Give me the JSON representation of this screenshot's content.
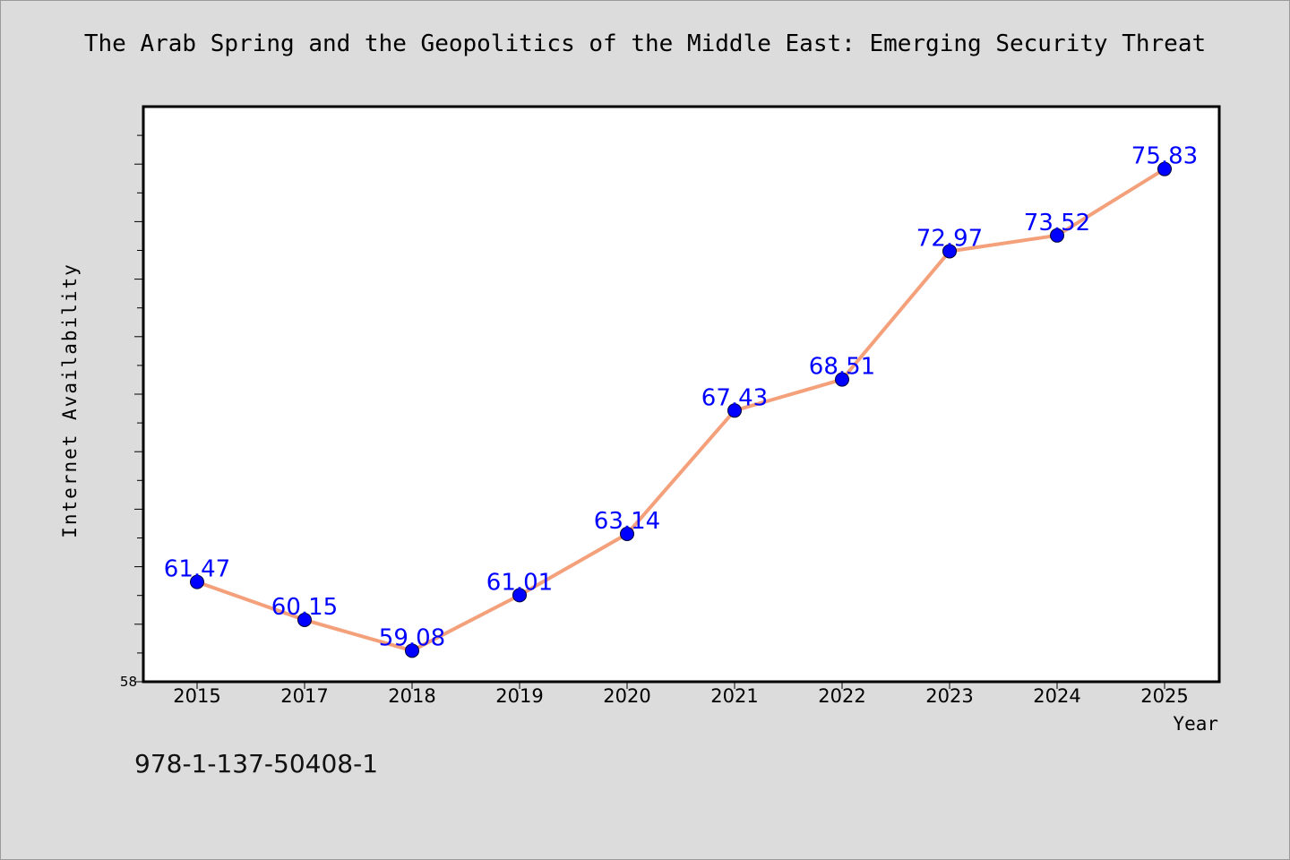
{
  "title": "The Arab Spring and the Geopolitics of the Middle East: Emerging Security Threat",
  "footer_code": "978-1-137-50408-1",
  "colors": {
    "background": "#dcdcdc",
    "plot_bg": "#ffffff",
    "line": "#f4a07a",
    "marker": "#0000ff",
    "label": "#0000ff"
  },
  "chart_data": {
    "type": "line",
    "categories": [
      "2015",
      "2017",
      "2018",
      "2019",
      "2020",
      "2021",
      "2022",
      "2023",
      "2024",
      "2025"
    ],
    "values": [
      61.47,
      60.15,
      59.08,
      61.01,
      63.14,
      67.43,
      68.51,
      72.97,
      73.52,
      75.83
    ],
    "value_labels": [
      "61.47",
      "60.15",
      "59.08",
      "61.01",
      "63.14",
      "67.43",
      "68.51",
      "72.97",
      "73.52",
      "75.83"
    ],
    "xlabel": "Year",
    "ylabel": "Internet Availability",
    "ylim": [
      58,
      78
    ],
    "y_tick_labels": [
      "58"
    ],
    "grid": false,
    "legend": "none"
  }
}
